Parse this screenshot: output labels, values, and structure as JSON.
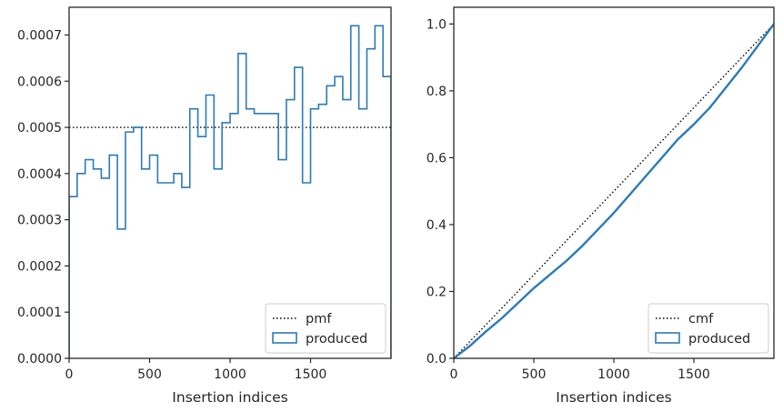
{
  "chart_data": [
    {
      "type": "histogram-step",
      "xlabel": "Insertion indices",
      "ylabel": "",
      "xlim": [
        0,
        2000
      ],
      "ylim": [
        0,
        0.00076
      ],
      "x_ticks": [
        0,
        500,
        1000,
        1500
      ],
      "x_tick_labels": [
        "0",
        "500",
        "1000",
        "1500"
      ],
      "y_ticks": [
        0,
        0.0001,
        0.0002,
        0.0003,
        0.0004,
        0.0005,
        0.0006,
        0.0007
      ],
      "y_tick_labels": [
        "0.0000",
        "0.0001",
        "0.0002",
        "0.0003",
        "0.0004",
        "0.0005",
        "0.0006",
        "0.0007"
      ],
      "legend_position": "lower-right",
      "reference_line": {
        "name": "pmf",
        "y": 0.0005,
        "style": "dotted",
        "color": "#000000"
      },
      "series": [
        {
          "name": "produced",
          "color": "#2b7bb9",
          "bin_width": 50,
          "bin_starts": [
            0,
            50,
            100,
            150,
            200,
            250,
            300,
            350,
            400,
            450,
            500,
            550,
            600,
            650,
            700,
            750,
            800,
            850,
            900,
            950,
            1000,
            1050,
            1100,
            1150,
            1200,
            1250,
            1300,
            1350,
            1400,
            1450,
            1500,
            1550,
            1600,
            1650,
            1700,
            1750,
            1800,
            1850,
            1900,
            1950
          ],
          "values": [
            0.00035,
            0.0004,
            0.00043,
            0.00041,
            0.00039,
            0.00044,
            0.00028,
            0.00049,
            0.0005,
            0.00041,
            0.00044,
            0.00038,
            0.00038,
            0.0004,
            0.00037,
            0.00054,
            0.00048,
            0.00057,
            0.00041,
            0.00051,
            0.00053,
            0.00066,
            0.00054,
            0.00053,
            0.00053,
            0.00053,
            0.00043,
            0.00056,
            0.00063,
            0.00038,
            0.00054,
            0.00055,
            0.00059,
            0.00061,
            0.00056,
            0.00072,
            0.00054,
            0.00067,
            0.00072,
            0.00061
          ]
        }
      ],
      "legend": [
        {
          "label": "pmf",
          "kind": "line"
        },
        {
          "label": "produced",
          "kind": "patch"
        }
      ]
    },
    {
      "type": "line",
      "xlabel": "Insertion indices",
      "ylabel": "",
      "xlim": [
        0,
        2000
      ],
      "ylim": [
        0,
        1.05
      ],
      "x_ticks": [
        0,
        500,
        1000,
        1500
      ],
      "x_tick_labels": [
        "0",
        "500",
        "1000",
        "1500"
      ],
      "y_ticks": [
        0,
        0.2,
        0.4,
        0.6,
        0.8,
        1.0
      ],
      "y_tick_labels": [
        "0.0",
        "0.2",
        "0.4",
        "0.6",
        "0.8",
        "1.0"
      ],
      "legend_position": "lower-right",
      "reference_line": {
        "name": "cmf",
        "from": [
          0,
          0
        ],
        "to": [
          2000,
          1.0
        ],
        "style": "dotted",
        "color": "#000000"
      },
      "series": [
        {
          "name": "produced",
          "color": "#2b7bb9",
          "x": [
            0,
            100,
            200,
            300,
            400,
            500,
            600,
            700,
            800,
            900,
            1000,
            1100,
            1200,
            1300,
            1400,
            1500,
            1600,
            1700,
            1800,
            1900,
            2000
          ],
          "y": [
            0,
            0.037,
            0.08,
            0.12,
            0.165,
            0.21,
            0.25,
            0.29,
            0.335,
            0.385,
            0.435,
            0.49,
            0.545,
            0.6,
            0.655,
            0.7,
            0.75,
            0.81,
            0.87,
            0.935,
            1.0
          ]
        }
      ],
      "legend": [
        {
          "label": "cmf",
          "kind": "line"
        },
        {
          "label": "produced",
          "kind": "patch"
        }
      ]
    }
  ]
}
